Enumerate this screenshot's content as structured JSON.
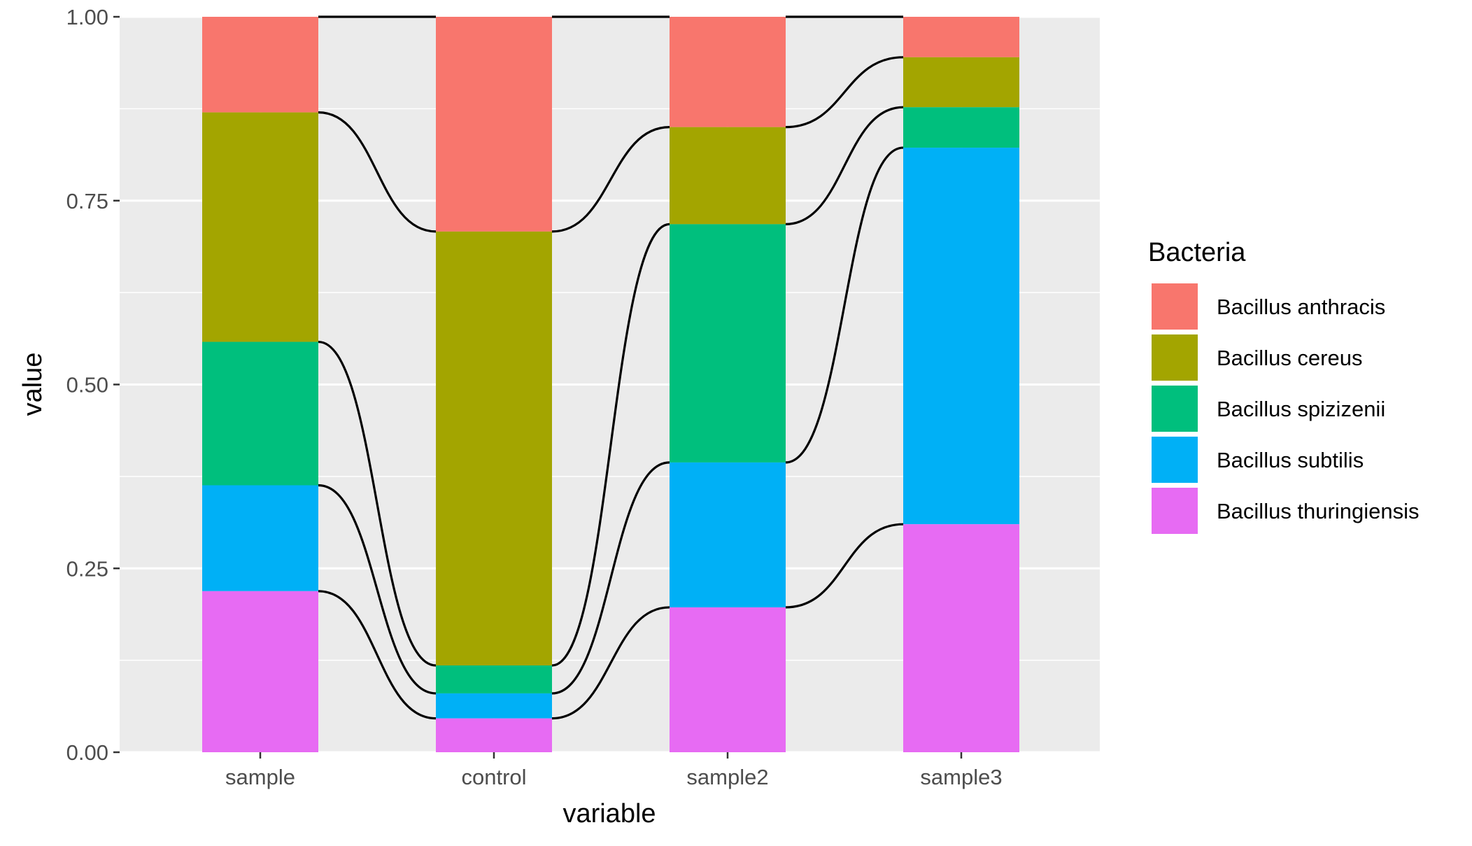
{
  "chart_data": {
    "type": "bar",
    "subtype": "stacked-proportion-with-flow-lines",
    "categories": [
      "sample",
      "control",
      "sample2",
      "sample3"
    ],
    "xlabel": "variable",
    "ylabel": "value",
    "ylim": [
      0,
      1
    ],
    "yticks": [
      "0.00",
      "0.25",
      "0.50",
      "0.75",
      "1.00"
    ],
    "grid": true,
    "legend": {
      "title": "Bacteria",
      "position": "right"
    },
    "series": [
      {
        "name": "Bacillus anthracis",
        "color": "#F8766D",
        "values": [
          0.13,
          0.292,
          0.15,
          0.055
        ]
      },
      {
        "name": "Bacillus cereus",
        "color": "#A3A500",
        "values": [
          0.312,
          0.59,
          0.132,
          0.068
        ]
      },
      {
        "name": "Bacillus spizizenii",
        "color": "#00BF7D",
        "values": [
          0.195,
          0.038,
          0.324,
          0.055
        ]
      },
      {
        "name": "Bacillus subtilis",
        "color": "#00B0F6",
        "values": [
          0.144,
          0.034,
          0.197,
          0.512
        ]
      },
      {
        "name": "Bacillus thuringiensis",
        "color": "#E76BF3",
        "values": [
          0.219,
          0.046,
          0.197,
          0.31
        ]
      }
    ]
  }
}
